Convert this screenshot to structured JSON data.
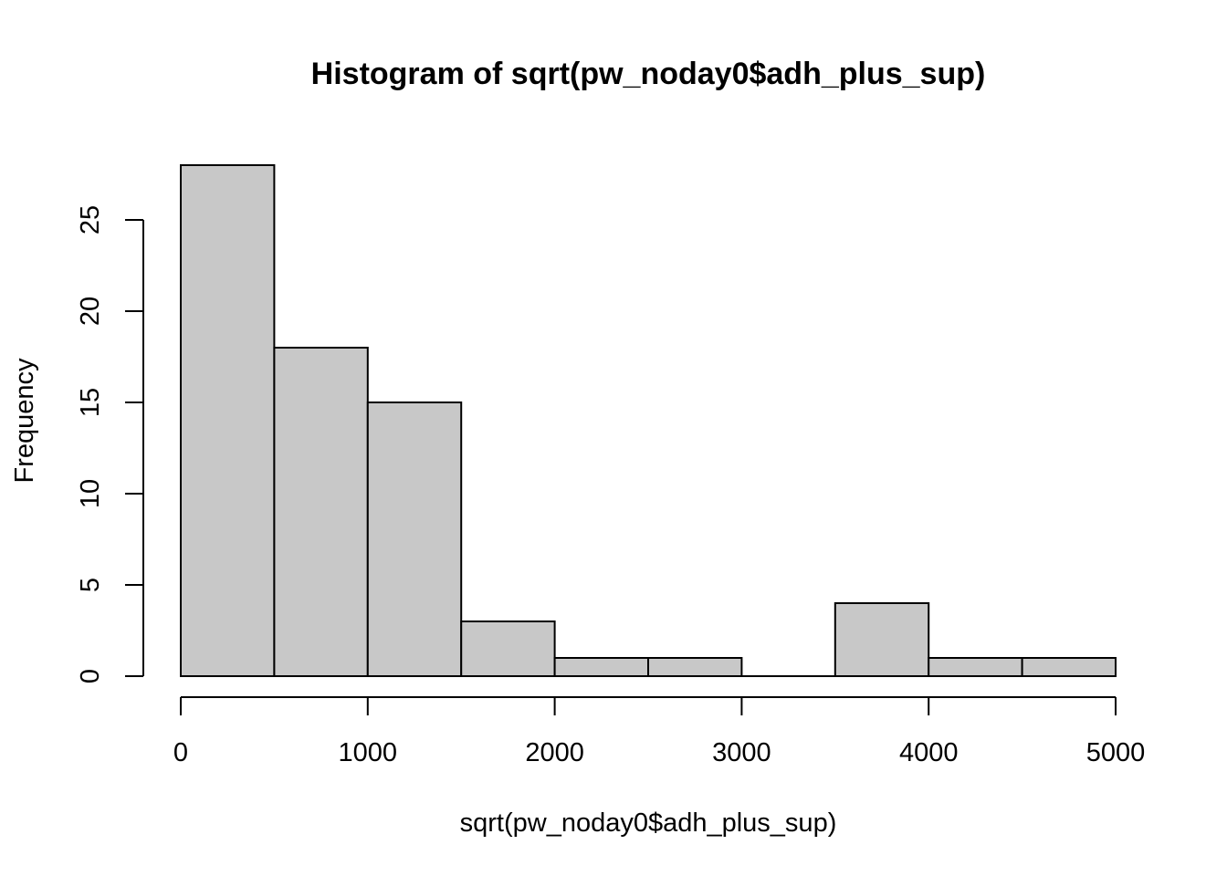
{
  "chart_data": {
    "type": "bar",
    "title": "Histogram of sqrt(pw_noday0$adh_plus_sup)",
    "xlabel": "sqrt(pw_noday0$adh_plus_sup)",
    "ylabel": "Frequency",
    "bins": [
      {
        "from": 0,
        "to": 500,
        "count": 28
      },
      {
        "from": 500,
        "to": 1000,
        "count": 18
      },
      {
        "from": 1000,
        "to": 1500,
        "count": 15
      },
      {
        "from": 1500,
        "to": 2000,
        "count": 3
      },
      {
        "from": 2000,
        "to": 2500,
        "count": 1
      },
      {
        "from": 2500,
        "to": 3000,
        "count": 1
      },
      {
        "from": 3000,
        "to": 3500,
        "count": 0
      },
      {
        "from": 3500,
        "to": 4000,
        "count": 4
      },
      {
        "from": 4000,
        "to": 4500,
        "count": 1
      },
      {
        "from": 4500,
        "to": 5000,
        "count": 1
      }
    ],
    "xlim": [
      0,
      5000
    ],
    "ylim": [
      0,
      28
    ],
    "x_ticks": [
      "0",
      "1000",
      "2000",
      "3000",
      "4000",
      "5000"
    ],
    "y_ticks": [
      "0",
      "5",
      "10",
      "15",
      "20",
      "25"
    ],
    "grid": false,
    "colors": {
      "bar_fill": "#c8c8c8",
      "bar_stroke": "#000000"
    }
  }
}
